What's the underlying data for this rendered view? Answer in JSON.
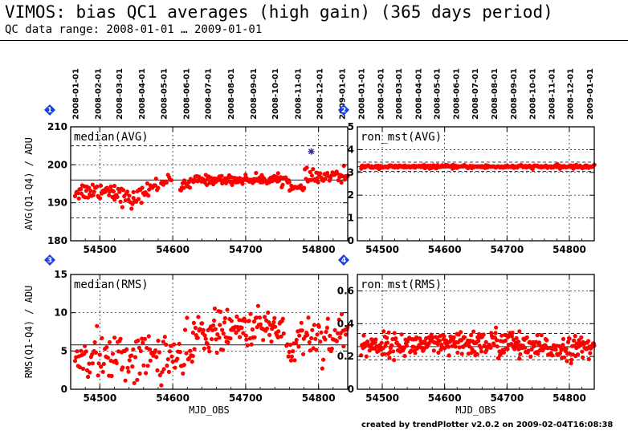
{
  "header": {
    "title": "VIMOS: bias QC1 averages (high gain) (365 days period)",
    "subtitle": "QC data range: 2008-01-01 … 2009-01-01"
  },
  "footer": {
    "text": "created by trendPlotter v2.0.2 on 2009-02-04T16:08:38"
  },
  "colors": {
    "points": "#ff0000",
    "outlier": "#3a2aa0",
    "panel_marker": "#1a3fe0",
    "grid": "#000000"
  },
  "chart_data": [
    {
      "type": "scatter",
      "panel_number": "1",
      "label": "median(AVG)",
      "ylabel": "AVG(Q1-Q4) / ADU",
      "xlabel": "",
      "xlim": [
        54460,
        54840
      ],
      "ylim": [
        180,
        210
      ],
      "x_ticks": [
        "54500",
        "54600",
        "54700",
        "54800"
      ],
      "y_ticks": [
        "180",
        "190",
        "200",
        "210"
      ],
      "reference_line": 196,
      "dashed_lines": [
        186,
        205
      ],
      "date_labels": [
        "2008-01-01",
        "2008-02-01",
        "2008-03-01",
        "2008-04-01",
        "2008-05-01",
        "2008-06-01",
        "2008-07-01",
        "2008-08-01",
        "2008-09-01",
        "2008-10-01",
        "2008-11-01",
        "2008-12-01",
        "2009-01-01"
      ],
      "outlier": {
        "x": 54790,
        "y": 203.5
      },
      "segments": [
        {
          "x0": 54466,
          "x1": 54520,
          "y0": 193,
          "y1": 193.5,
          "sd": 1.2,
          "n": 44
        },
        {
          "x0": 54520,
          "x1": 54546,
          "y0": 193,
          "y1": 190,
          "sd": 1.2,
          "n": 20
        },
        {
          "x0": 54546,
          "x1": 54580,
          "y0": 191,
          "y1": 195,
          "sd": 1.0,
          "n": 26
        },
        {
          "x0": 54584,
          "x1": 54598,
          "y0": 195,
          "y1": 197,
          "sd": 0.8,
          "n": 10
        },
        {
          "x0": 54610,
          "x1": 54626,
          "y0": 194,
          "y1": 195,
          "sd": 0.7,
          "n": 14
        },
        {
          "x0": 54628,
          "x1": 54760,
          "y0": 196,
          "y1": 196.2,
          "sd": 0.6,
          "n": 130
        },
        {
          "x0": 54760,
          "x1": 54780,
          "y0": 194,
          "y1": 193.5,
          "sd": 0.5,
          "n": 14
        },
        {
          "x0": 54780,
          "x1": 54840,
          "y0": 196.5,
          "y1": 197,
          "sd": 1.0,
          "n": 44
        }
      ]
    },
    {
      "type": "scatter",
      "panel_number": "2",
      "label": "ron_mst(AVG)",
      "ylabel": "",
      "xlabel": "",
      "xlim": [
        54460,
        54840
      ],
      "ylim": [
        0,
        5
      ],
      "x_ticks": [
        "54500",
        "54600",
        "54700",
        "54800"
      ],
      "y_ticks": [
        "0",
        "1",
        "2",
        "3",
        "4",
        "5"
      ],
      "reference_line": 3.25,
      "dashed_lines": [
        3.05,
        3.45
      ],
      "date_labels": [
        "2008-01-01",
        "2008-02-01",
        "2008-03-01",
        "2008-04-01",
        "2008-05-01",
        "2008-06-01",
        "2008-07-01",
        "2008-08-01",
        "2008-09-01",
        "2008-10-01",
        "2008-11-01",
        "2008-12-01",
        "2009-01-01"
      ],
      "segments": [
        {
          "x0": 54466,
          "x1": 54840,
          "y0": 3.25,
          "y1": 3.25,
          "sd": 0.035,
          "n": 300
        }
      ]
    },
    {
      "type": "scatter",
      "panel_number": "3",
      "label": "median(RMS)",
      "ylabel": "RMS(Q1-Q4) / ADU",
      "xlabel": "MJD_OBS",
      "xlim": [
        54460,
        54840
      ],
      "ylim": [
        0,
        15
      ],
      "x_ticks": [
        "54500",
        "54600",
        "54700",
        "54800"
      ],
      "y_ticks": [
        "0",
        "5",
        "10",
        "15"
      ],
      "reference_line": 5.8,
      "dashed_lines": [],
      "segments": [
        {
          "x0": 54466,
          "x1": 54530,
          "y0": 4.5,
          "y1": 4.0,
          "sd": 1.6,
          "n": 48
        },
        {
          "x0": 54530,
          "x1": 54600,
          "y0": 4.0,
          "y1": 4.5,
          "sd": 1.6,
          "n": 54
        },
        {
          "x0": 54602,
          "x1": 54628,
          "y0": 4.0,
          "y1": 3.5,
          "sd": 1.8,
          "n": 20
        },
        {
          "x0": 54628,
          "x1": 54690,
          "y0": 7.5,
          "y1": 7.5,
          "sd": 1.3,
          "n": 62
        },
        {
          "x0": 54690,
          "x1": 54752,
          "y0": 8.0,
          "y1": 8.2,
          "sd": 1.1,
          "n": 56
        },
        {
          "x0": 54756,
          "x1": 54780,
          "y0": 4.5,
          "y1": 7.5,
          "sd": 1.6,
          "n": 20
        },
        {
          "x0": 54782,
          "x1": 54840,
          "y0": 7.0,
          "y1": 7.0,
          "sd": 1.5,
          "n": 44
        }
      ]
    },
    {
      "type": "scatter",
      "panel_number": "4",
      "label": "ron_mst(RMS)",
      "ylabel": "",
      "xlabel": "MJD_OBS",
      "xlim": [
        54460,
        54840
      ],
      "ylim": [
        0,
        0.7
      ],
      "x_ticks": [
        "54500",
        "54600",
        "54700",
        "54800"
      ],
      "y_ticks": [
        "0",
        "0.2",
        "0.4",
        "0.6"
      ],
      "reference_line": 0.26,
      "dashed_lines": [
        0.18,
        0.34
      ],
      "segments": [
        {
          "x0": 54466,
          "x1": 54630,
          "y0": 0.27,
          "y1": 0.27,
          "sd": 0.035,
          "n": 160
        },
        {
          "x0": 54630,
          "x1": 54720,
          "y0": 0.28,
          "y1": 0.28,
          "sd": 0.045,
          "n": 90
        },
        {
          "x0": 54720,
          "x1": 54840,
          "y0": 0.25,
          "y1": 0.25,
          "sd": 0.035,
          "n": 110
        }
      ]
    }
  ]
}
